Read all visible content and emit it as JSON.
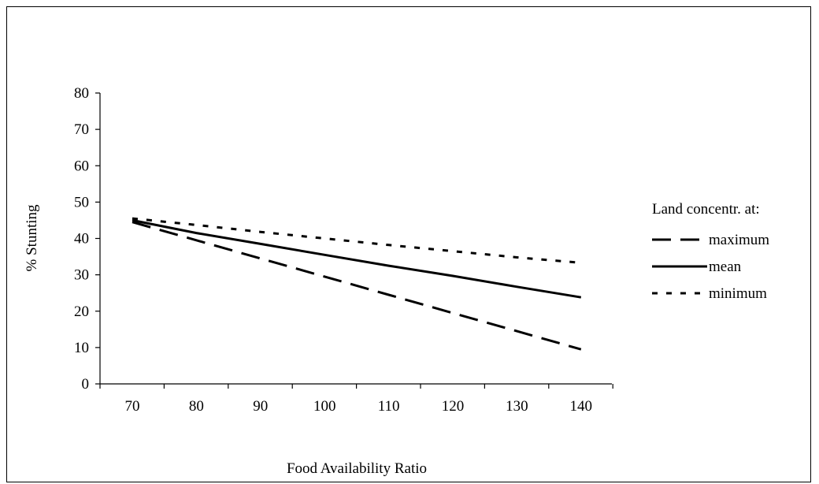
{
  "chart_data": {
    "type": "line",
    "x": [
      70,
      80,
      90,
      100,
      110,
      120,
      130,
      140
    ],
    "series": [
      {
        "name": "maximum",
        "style": "dashed",
        "color": "#000000",
        "values": [
          44.5,
          39.5,
          34.5,
          29.5,
          24.5,
          19.5,
          14.5,
          9.5
        ]
      },
      {
        "name": "mean",
        "style": "solid",
        "color": "#000000",
        "values": [
          45.0,
          41.5,
          38.5,
          35.5,
          32.5,
          29.7,
          26.7,
          23.8
        ]
      },
      {
        "name": "minimum",
        "style": "dotted",
        "color": "#000000",
        "values": [
          45.5,
          43.7,
          41.8,
          40.0,
          38.2,
          36.5,
          34.8,
          33.3
        ]
      }
    ],
    "xlabel": "Food Availability Ratio",
    "ylabel": "% Stunting",
    "ylim": [
      0,
      80
    ],
    "yticks": [
      0,
      10,
      20,
      30,
      40,
      50,
      60,
      70,
      80
    ],
    "xticks": [
      70,
      80,
      90,
      100,
      110,
      120,
      130,
      140
    ],
    "grid": false,
    "legend": {
      "title": "Land concentr. at:",
      "placement": "right"
    }
  }
}
